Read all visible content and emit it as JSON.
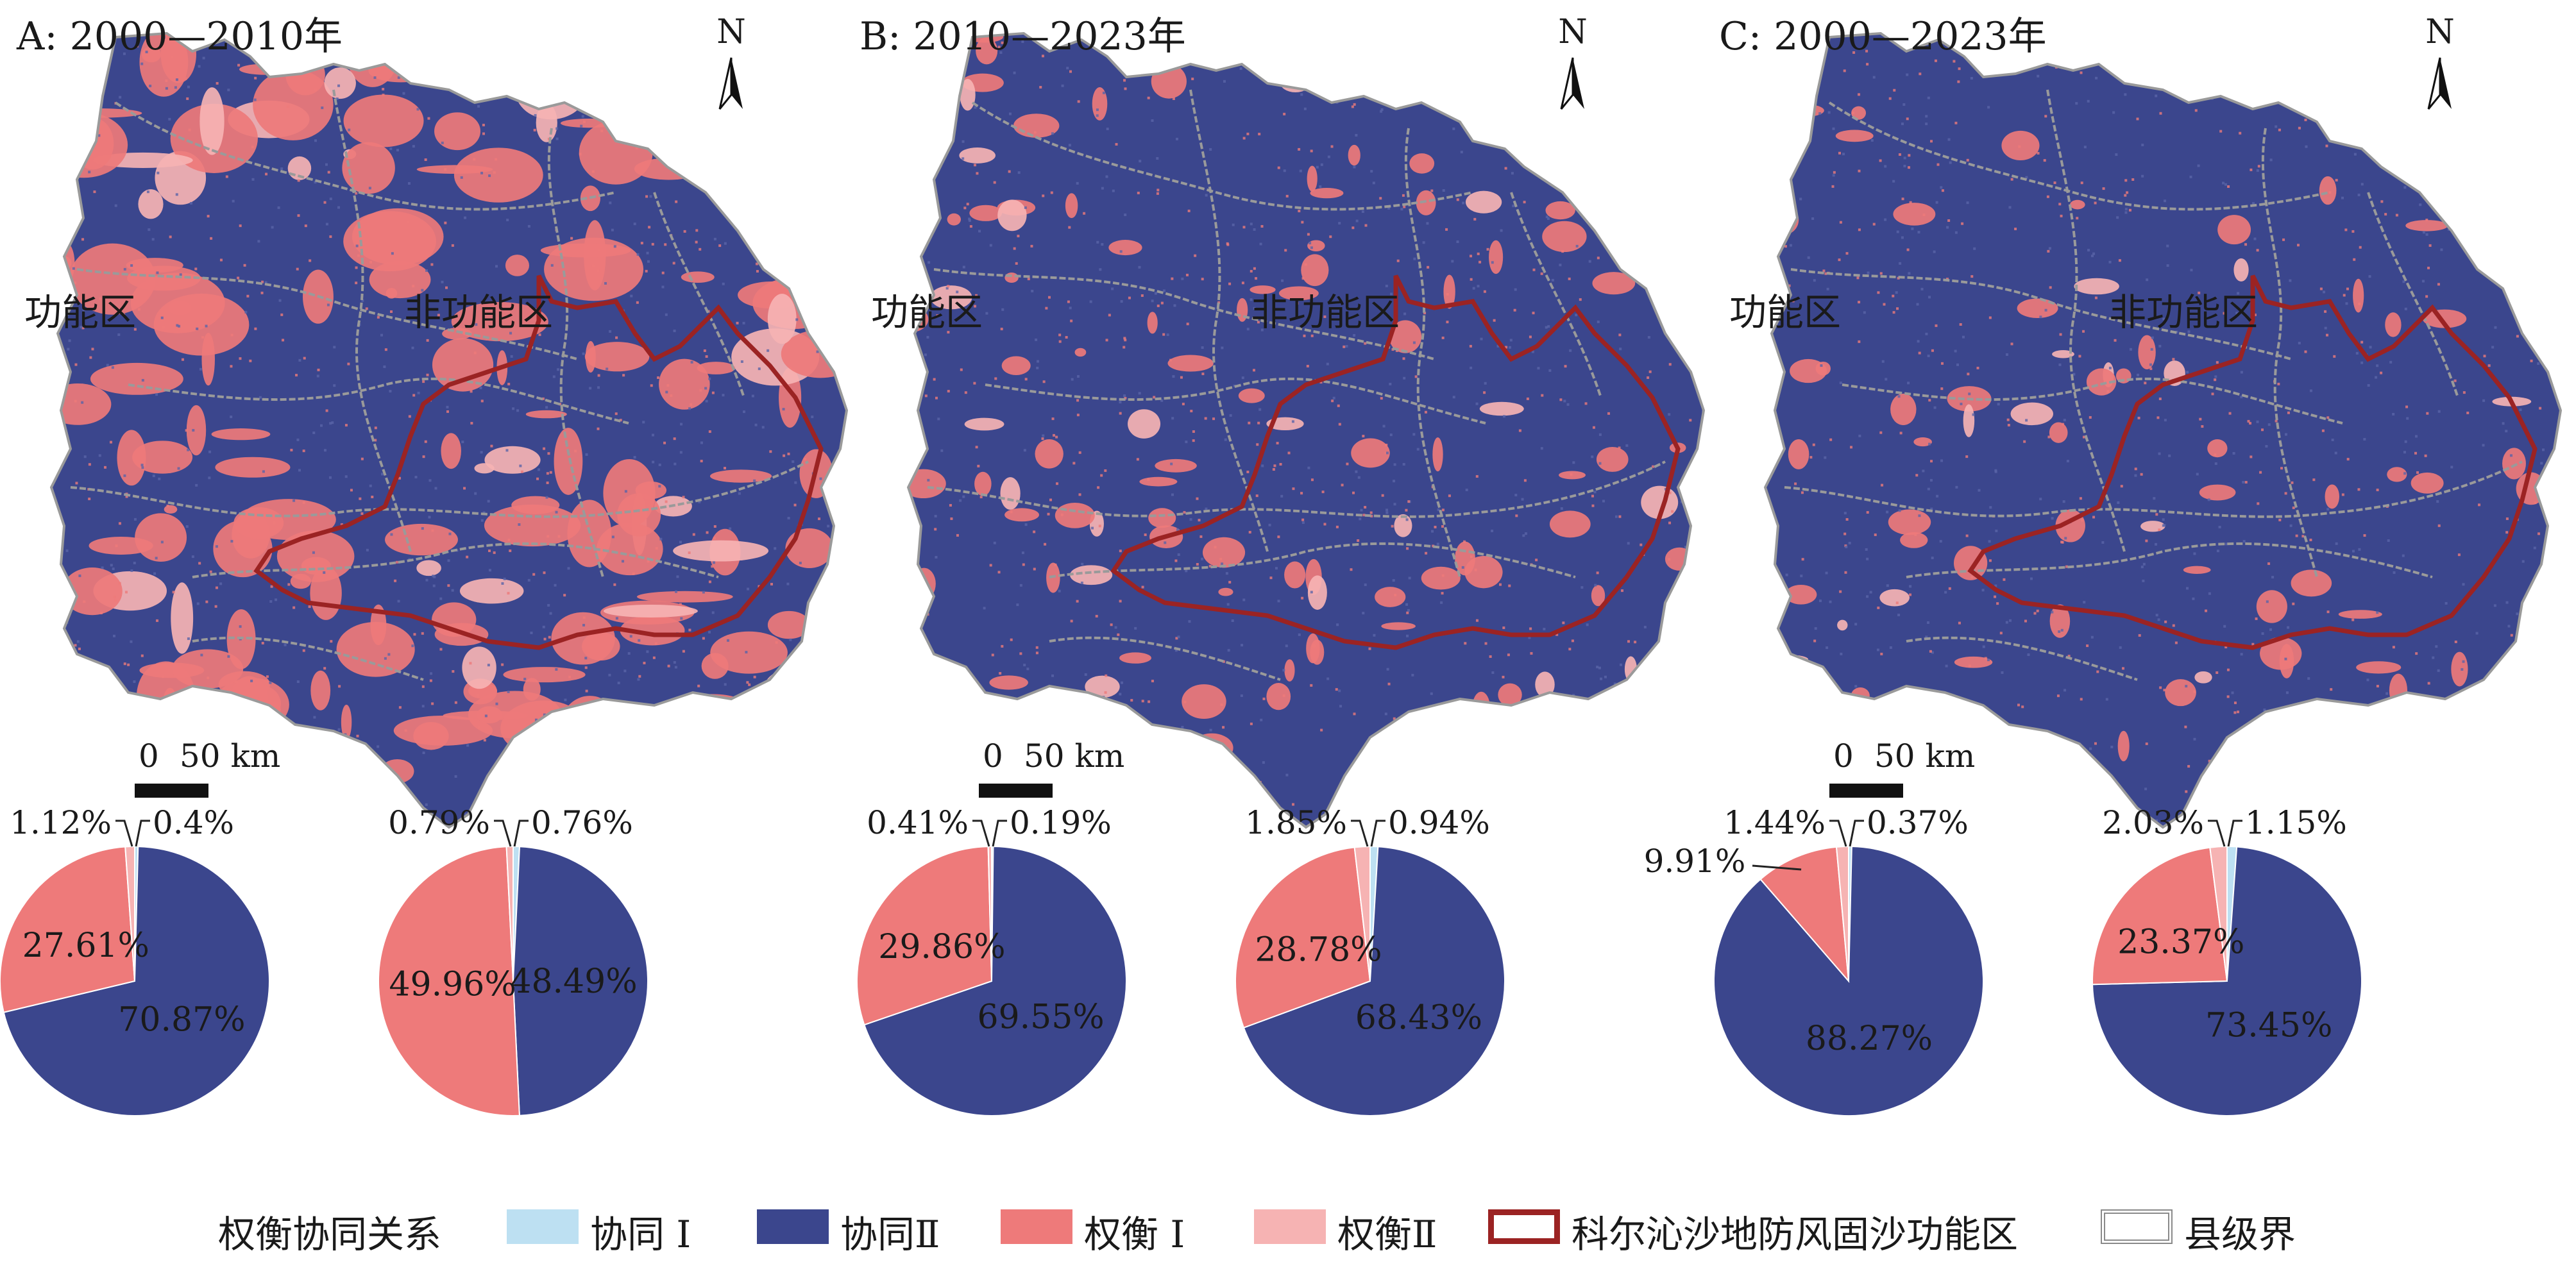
{
  "colors": {
    "synergy_1": "#bde0f2",
    "synergy_2": "#3b468d",
    "tradeoff_1": "#ee7a7a",
    "tradeoff_2": "#f6b3b3",
    "zone_boundary": "#9b2323",
    "county_boundary": "#9a9a9a"
  },
  "panels": [
    {
      "title": "A: 2000—2010年",
      "north": "N",
      "scale": {
        "zero": "0",
        "label": "50 km"
      },
      "map_balance": 0.45,
      "pies": [
        {
          "zone": "功能区",
          "labels": {
            "synergy_2": "70.87%",
            "tradeoff_1": "27.61%",
            "tradeoff_2": "1.12%",
            "synergy_1": "0.4%"
          },
          "values": {
            "synergy_2": 70.87,
            "tradeoff_1": 27.61,
            "tradeoff_2": 1.12,
            "synergy_1": 0.4
          }
        },
        {
          "zone": "非功能区",
          "labels": {
            "synergy_2": "48.49%",
            "tradeoff_1": "49.96%",
            "tradeoff_2": "0.79%",
            "synergy_1": "0.76%"
          },
          "values": {
            "synergy_2": 48.49,
            "tradeoff_1": 49.96,
            "tradeoff_2": 0.79,
            "synergy_1": 0.76
          }
        }
      ]
    },
    {
      "title": "B: 2010—2023年",
      "north": "N",
      "scale": {
        "zero": "0",
        "label": "50 km"
      },
      "map_balance": 0.72,
      "pies": [
        {
          "zone": "功能区",
          "labels": {
            "synergy_2": "69.55%",
            "tradeoff_1": "29.86%",
            "tradeoff_2": "0.41%",
            "synergy_1": "0.19%"
          },
          "values": {
            "synergy_2": 69.55,
            "tradeoff_1": 29.86,
            "tradeoff_2": 0.41,
            "synergy_1": 0.19
          }
        },
        {
          "zone": "非功能区",
          "labels": {
            "synergy_2": "68.43%",
            "tradeoff_1": "28.78%",
            "tradeoff_2": "1.85%",
            "synergy_1": "0.94%"
          },
          "values": {
            "synergy_2": 68.43,
            "tradeoff_1": 28.78,
            "tradeoff_2": 1.85,
            "synergy_1": 0.94
          }
        }
      ]
    },
    {
      "title": "C: 2000—2023年",
      "north": "N",
      "scale": {
        "zero": "0",
        "label": "50 km"
      },
      "map_balance": 0.84,
      "pies": [
        {
          "zone": "功能区",
          "labels": {
            "synergy_2": "88.27%",
            "tradeoff_1": "9.91%",
            "tradeoff_2": "1.44%",
            "synergy_1": "0.37%"
          },
          "values": {
            "synergy_2": 88.27,
            "tradeoff_1": 9.91,
            "tradeoff_2": 1.44,
            "synergy_1": 0.37
          }
        },
        {
          "zone": "非功能区",
          "labels": {
            "synergy_2": "73.45%",
            "tradeoff_1": "23.37%",
            "tradeoff_2": "2.03%",
            "synergy_1": "1.15%"
          },
          "values": {
            "synergy_2": 73.45,
            "tradeoff_1": 23.37,
            "tradeoff_2": 2.03,
            "synergy_1": 1.15
          }
        }
      ]
    }
  ],
  "legend": {
    "title": "权衡协同关系",
    "items": [
      {
        "key": "synergy_1",
        "label": "协同 Ⅰ"
      },
      {
        "key": "synergy_2",
        "label": "协同Ⅱ"
      },
      {
        "key": "tradeoff_1",
        "label": "权衡 Ⅰ"
      },
      {
        "key": "tradeoff_2",
        "label": "权衡Ⅱ"
      },
      {
        "key": "zone_boundary",
        "label": "科尔沁沙地防风固沙功能区"
      },
      {
        "key": "county_boundary",
        "label": "县级界"
      }
    ]
  }
}
